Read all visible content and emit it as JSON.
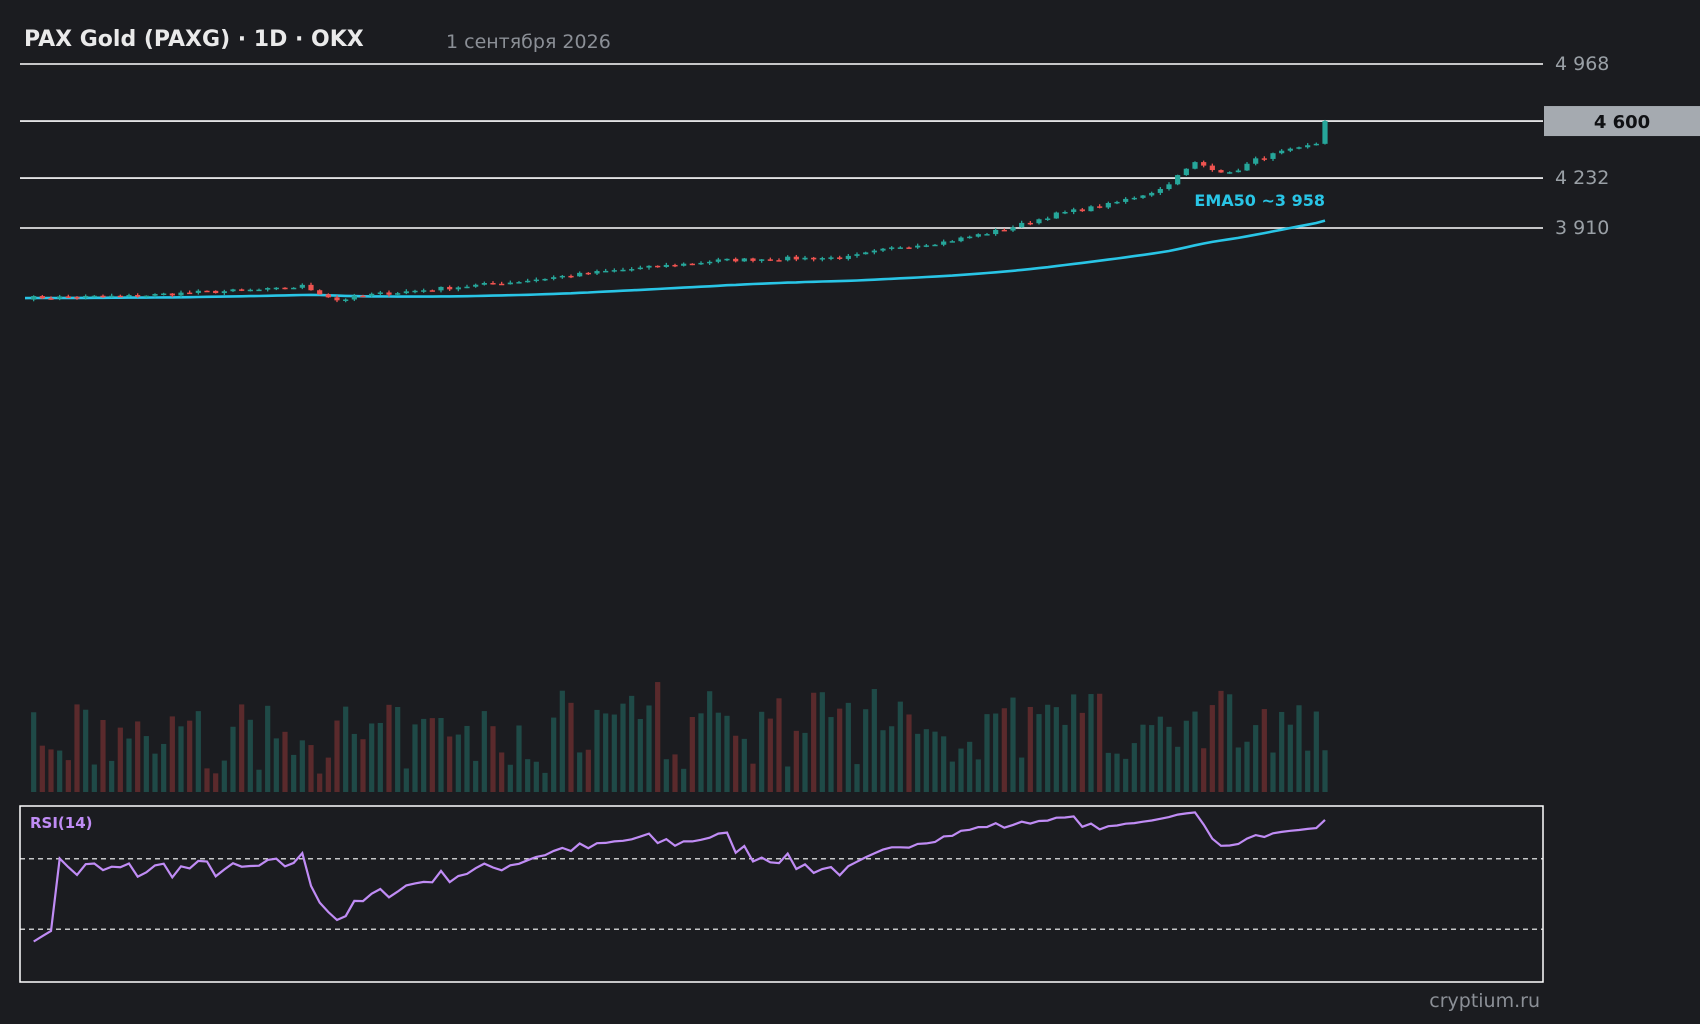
{
  "header": {
    "title": "PAX Gold (PAXG) · 1D · OKX",
    "date": "1 сентября 2026"
  },
  "watermark": "cryptium.ru",
  "colors": {
    "background": "#1b1c20",
    "up": "#26a69a",
    "down": "#ef5350",
    "ema": "#29c5e6",
    "rsi": "#c08cf5",
    "level_line": "#ffffff",
    "price_tag_bg": "#a5aab0"
  },
  "chart_data": {
    "type": "candlestick",
    "interval": "1D",
    "candles": 150,
    "close_points": [
      [
        0,
        3460
      ],
      [
        12,
        3470
      ],
      [
        20,
        3495
      ],
      [
        29,
        3515
      ],
      [
        32,
        3535
      ],
      [
        36,
        3445
      ],
      [
        40,
        3480
      ],
      [
        56,
        3560
      ],
      [
        67,
        3630
      ],
      [
        71,
        3650
      ],
      [
        80,
        3700
      ],
      [
        85,
        3710
      ],
      [
        95,
        3720
      ],
      [
        101,
        3790
      ],
      [
        106,
        3820
      ],
      [
        113,
        3900
      ],
      [
        119,
        4000
      ],
      [
        125,
        4060
      ],
      [
        131,
        4160
      ],
      [
        135,
        4330
      ],
      [
        139,
        4260
      ],
      [
        142,
        4350
      ],
      [
        145,
        4400
      ],
      [
        147,
        4420
      ],
      [
        149,
        4455
      ],
      [
        150,
        4600
      ]
    ],
    "y_ticks": [
      4968,
      4232,
      3910
    ],
    "current_price": {
      "value": 4600,
      "label": "4 600"
    },
    "levels": [
      {
        "value": 4968,
        "label": "4 968"
      },
      {
        "value": 4600,
        "label": ""
      },
      {
        "value": 4232,
        "label": "4 232"
      },
      {
        "value": 3910,
        "label": "3 910"
      }
    ],
    "ema": {
      "period": 50,
      "label": "EMA50 ~3 958",
      "last": 3958
    },
    "rsi": {
      "label": "RSI(14)",
      "period": 14,
      "upper": 70,
      "lower": 30
    },
    "volume": {
      "shown": true
    },
    "grid": false
  }
}
